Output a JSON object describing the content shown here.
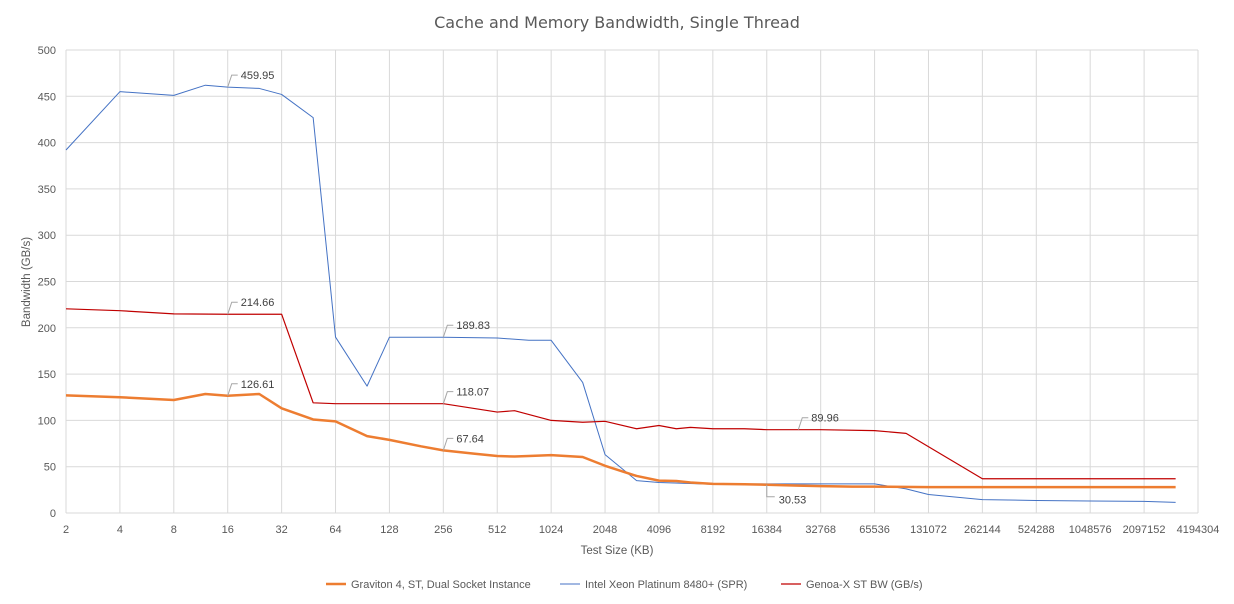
{
  "chart_data": {
    "type": "line",
    "title": "Cache and Memory Bandwidth, Single Thread",
    "xlabel": "Test Size (KB)",
    "ylabel": "Bandwidth (GB/s)",
    "x_scale": "log2",
    "xlim": [
      2,
      4194304
    ],
    "ylim": [
      0,
      500
    ],
    "y_ticks": [
      "0",
      "50",
      "100",
      "150",
      "200",
      "250",
      "300",
      "350",
      "400",
      "450",
      "500"
    ],
    "x_ticks": [
      "2",
      "4",
      "8",
      "16",
      "32",
      "64",
      "128",
      "256",
      "512",
      "1024",
      "2048",
      "4096",
      "8192",
      "16384",
      "32768",
      "65536",
      "131072",
      "262144",
      "524288",
      "1048576",
      "2097152",
      "4194304"
    ],
    "grid": true,
    "legend_position": "bottom",
    "series": [
      {
        "name": "Graviton 4, ST, Dual Socket Instance",
        "color": "#ed7d31",
        "x": [
          2,
          4,
          8,
          12,
          16,
          24,
          32,
          48,
          64,
          96,
          128,
          192,
          256,
          384,
          512,
          640,
          768,
          1024,
          1536,
          2048,
          3072,
          4096,
          5120,
          6144,
          8192,
          12288,
          16384,
          24576,
          32768,
          49152,
          65536,
          131072,
          262144,
          524288,
          1048576,
          2097152,
          3145728
        ],
        "values": [
          127,
          125,
          122,
          128.5,
          126.61,
          128.5,
          113,
          101,
          99,
          83,
          79,
          72,
          67.64,
          64,
          61.5,
          61,
          61.5,
          62.5,
          60.5,
          51,
          40,
          35,
          34.5,
          33,
          31.5,
          31,
          30.53,
          29.5,
          29,
          28.5,
          28.5,
          28,
          28,
          28,
          28,
          28,
          28
        ]
      },
      {
        "name": "Intel Xeon Platinum 8480+ (SPR)",
        "color": "#4472c4",
        "x": [
          2,
          4,
          8,
          12,
          16,
          24,
          32,
          48,
          64,
          96,
          128,
          256,
          512,
          768,
          1024,
          1536,
          2048,
          3072,
          4096,
          8192,
          16384,
          32768,
          65536,
          98304,
          131072,
          262144,
          524288,
          1048576,
          2097152,
          3145728
        ],
        "values": [
          392,
          455,
          451,
          462,
          459.95,
          458.5,
          452,
          427,
          190,
          137,
          189.83,
          189.83,
          189,
          186.5,
          186.5,
          141,
          63,
          35,
          33,
          31,
          31.5,
          31.5,
          31.5,
          26,
          20,
          14.5,
          13.5,
          13,
          12.5,
          11.5
        ]
      },
      {
        "name": "Genoa-X ST BW (GB/s)",
        "color": "#c00000",
        "x": [
          2,
          4,
          8,
          16,
          32,
          48,
          64,
          128,
          256,
          512,
          640,
          1024,
          1536,
          2048,
          3072,
          4096,
          5120,
          6144,
          8192,
          12288,
          16384,
          24576,
          32768,
          65536,
          98304,
          262144,
          524288,
          1048576,
          2097152,
          3145728
        ],
        "values": [
          220.5,
          218.5,
          215,
          214.66,
          214.66,
          119,
          118.07,
          118.07,
          118.07,
          109,
          110.5,
          100,
          98,
          99,
          91,
          94.5,
          91,
          92.5,
          91,
          91,
          89.96,
          89.96,
          89.96,
          89,
          86,
          37,
          37,
          37,
          37,
          37
        ]
      }
    ],
    "annotations": [
      {
        "text": "459.95",
        "series": 1,
        "x": 16,
        "y": 459.95
      },
      {
        "text": "189.83",
        "series": 1,
        "x": 256,
        "y": 189.83
      },
      {
        "text": "214.66",
        "series": 2,
        "x": 16,
        "y": 214.66
      },
      {
        "text": "118.07",
        "series": 2,
        "x": 256,
        "y": 118.07
      },
      {
        "text": "89.96",
        "series": 2,
        "x": 24576,
        "y": 89.96
      },
      {
        "text": "126.61",
        "series": 0,
        "x": 16,
        "y": 126.61
      },
      {
        "text": "67.64",
        "series": 0,
        "x": 256,
        "y": 67.64
      },
      {
        "text": "30.53",
        "series": 0,
        "x": 16384,
        "y": 30.53
      }
    ]
  }
}
